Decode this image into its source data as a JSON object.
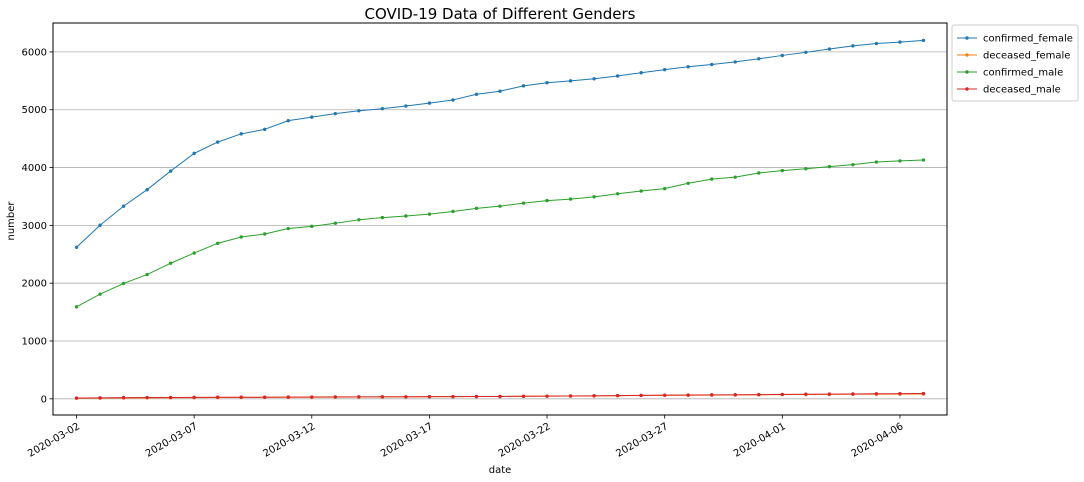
{
  "chart_data": {
    "type": "line",
    "title": "COVID-19 Data of Different Genders",
    "xlabel": "date",
    "ylabel": "number",
    "x": [
      "2020-03-02",
      "2020-03-03",
      "2020-03-04",
      "2020-03-05",
      "2020-03-06",
      "2020-03-07",
      "2020-03-08",
      "2020-03-09",
      "2020-03-10",
      "2020-03-11",
      "2020-03-12",
      "2020-03-13",
      "2020-03-14",
      "2020-03-15",
      "2020-03-16",
      "2020-03-17",
      "2020-03-18",
      "2020-03-19",
      "2020-03-20",
      "2020-03-21",
      "2020-03-22",
      "2020-03-23",
      "2020-03-24",
      "2020-03-25",
      "2020-03-26",
      "2020-03-27",
      "2020-03-28",
      "2020-03-29",
      "2020-03-30",
      "2020-03-31",
      "2020-04-01",
      "2020-04-02",
      "2020-04-03",
      "2020-04-04",
      "2020-04-05",
      "2020-04-06",
      "2020-04-07"
    ],
    "x_ticks": [
      "2020-03-02",
      "2020-03-07",
      "2020-03-12",
      "2020-03-17",
      "2020-03-22",
      "2020-03-27",
      "2020-04-01",
      "2020-04-06"
    ],
    "x_range": [
      "2020-03-01",
      "2020-04-08"
    ],
    "y_ticks": [
      0,
      1000,
      2000,
      3000,
      4000,
      5000,
      6000
    ],
    "ylim": [
      -280,
      6500
    ],
    "grid": "horizontal",
    "legend_position": "outside-top-right",
    "series": [
      {
        "name": "confirmed_female",
        "color": "#1f77b4",
        "values": [
          2621,
          3002,
          3332,
          3617,
          3939,
          4245,
          4440,
          4583,
          4661,
          4811,
          4872,
          4932,
          4982,
          5018,
          5064,
          5115,
          5169,
          5267,
          5320,
          5413,
          5467,
          5500,
          5535,
          5584,
          5640,
          5693,
          5743,
          5782,
          5827,
          5881,
          5939,
          5993,
          6050,
          6105,
          6145,
          6170,
          6199
        ]
      },
      {
        "name": "deceased_female",
        "color": "#ff7f0e",
        "values": [
          9,
          11,
          14,
          17,
          19,
          21,
          22,
          25,
          26,
          27,
          28,
          29,
          31,
          32,
          33,
          35,
          37,
          39,
          41,
          44,
          46,
          48,
          51,
          54,
          57,
          59,
          61,
          64,
          66,
          69,
          72,
          74,
          76,
          78,
          80,
          82,
          84
        ]
      },
      {
        "name": "confirmed_male",
        "color": "#2ca02c",
        "values": [
          1591,
          1810,
          1996,
          2149,
          2345,
          2521,
          2689,
          2799,
          2851,
          2945,
          2983,
          3037,
          3096,
          3134,
          3162,
          3194,
          3240,
          3294,
          3332,
          3384,
          3428,
          3454,
          3493,
          3546,
          3594,
          3636,
          3728,
          3800,
          3834,
          3906,
          3947,
          3980,
          4016,
          4050,
          4095,
          4115,
          4130
        ]
      },
      {
        "name": "deceased_male",
        "color": "#d62728",
        "values": [
          13,
          17,
          21,
          22,
          23,
          25,
          27,
          28,
          28,
          30,
          31,
          33,
          34,
          35,
          35,
          37,
          38,
          40,
          41,
          44,
          46,
          49,
          51,
          56,
          60,
          63,
          65,
          68,
          71,
          73,
          76,
          79,
          82,
          84,
          87,
          89,
          91
        ]
      }
    ]
  }
}
